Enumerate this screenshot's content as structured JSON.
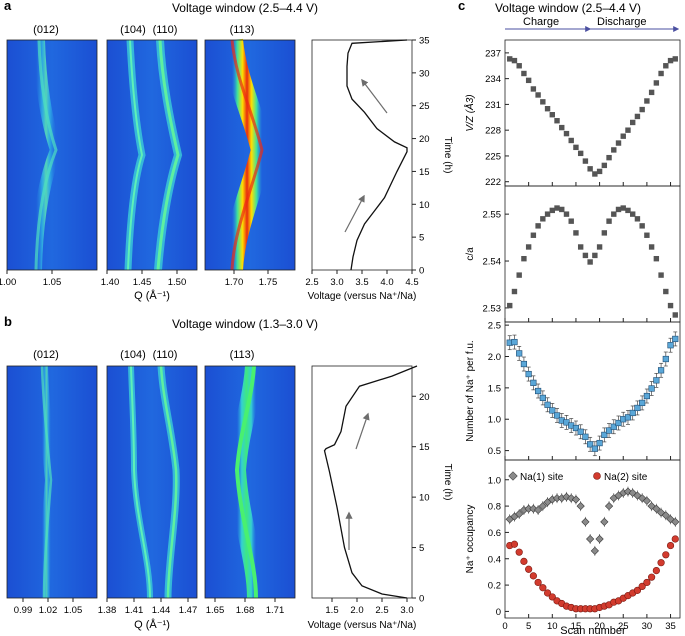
{
  "colors": {
    "heat_low": "#1a4fd6",
    "heat_mid": "#2aa6e8",
    "heat_peak": "#3ee89a",
    "heat_hot": "#ffe000",
    "heat_max": "#e01010",
    "marker_dark": "#555555",
    "marker_blue": "#5aa7d8",
    "marker_grey": "#8a8a8a",
    "marker_red": "#d23b2e",
    "arrow": "#6d6d6d",
    "axis": "#222222"
  },
  "panel_a": {
    "letter": "a",
    "title": "Voltage window (2.5–4.4 V)",
    "peaks": [
      "(012)",
      "(104)",
      "(110)",
      "(113)"
    ],
    "q_label": "Q (Å⁻¹)",
    "map1": {
      "q_range": [
        1.0,
        1.1
      ],
      "ticks": [
        "1.00",
        "1.05"
      ]
    },
    "map2": {
      "q_range": [
        1.4,
        1.53
      ],
      "ticks": [
        "1.40",
        "1.45",
        "1.50"
      ]
    },
    "map3": {
      "q_range": [
        1.65,
        1.78
      ],
      "ticks": [
        "1.70",
        "1.75"
      ]
    },
    "voltage_label": "Voltage (versus Na⁺/Na)",
    "voltage_ticks": [
      "2.5",
      "3.0",
      "3.5",
      "4.0",
      "4.5"
    ],
    "time_label": "Time (h)",
    "time_ticks": [
      "0",
      "5",
      "10",
      "15",
      "20",
      "25",
      "30",
      "35"
    ]
  },
  "panel_b": {
    "letter": "b",
    "title": "Voltage window (1.3–3.0 V)",
    "peaks": [
      "(012)",
      "(104)",
      "(110)",
      "(113)"
    ],
    "q_label": "Q (Å⁻¹)",
    "map1": {
      "q_range": [
        0.96,
        1.07
      ],
      "ticks": [
        "0.99",
        "1.02",
        "1.05"
      ]
    },
    "map2": {
      "q_range": [
        1.38,
        1.48
      ],
      "ticks": [
        "1.38",
        "1.41",
        "1.44",
        "1.47"
      ]
    },
    "map3": {
      "q_range": [
        1.64,
        1.73
      ],
      "ticks": [
        "1.65",
        "1.68",
        "1.71"
      ]
    },
    "voltage_label": "Voltage (versus Na⁺/Na)",
    "voltage_ticks": [
      "1.5",
      "2.0",
      "2.5",
      "3.0"
    ],
    "time_label": "Time (h)",
    "time_ticks": [
      "0",
      "5",
      "10",
      "15",
      "20"
    ]
  },
  "panel_c": {
    "letter": "c",
    "title": "Voltage window (2.5–4.4 V)",
    "charge_label": "Charge",
    "discharge_label": "Discharge",
    "x_label": "Scan number",
    "x_ticks": [
      "0",
      "5",
      "10",
      "15",
      "20",
      "25",
      "30",
      "35"
    ],
    "legend_na1": "Na(1) site",
    "legend_na2": "Na(2) site"
  },
  "chart_data": [
    {
      "type": "line",
      "title": "Voltage window (2.5–4.4 V)",
      "xlabel": "Voltage (versus Na⁺/Na)",
      "ylabel": "Time (h)",
      "xlim": [
        2.5,
        4.5
      ],
      "ylim": [
        0,
        35
      ],
      "x": [
        3.28,
        3.32,
        3.4,
        3.55,
        3.75,
        3.95,
        4.2,
        4.4,
        4.4,
        4.15,
        3.8,
        3.55,
        3.3,
        3.2,
        3.2,
        3.22,
        3.3,
        4.4
      ],
      "y": [
        0,
        2,
        4.5,
        7,
        9,
        11,
        15,
        18,
        18.6,
        19.5,
        21.5,
        24,
        26,
        28,
        31,
        33,
        34.5,
        35
      ]
    },
    {
      "type": "line",
      "title": "Voltage window (1.3–3.0 V)",
      "xlabel": "Voltage (versus Na⁺/Na)",
      "ylabel": "Time (h)",
      "xlim": [
        1.1,
        3.1
      ],
      "ylim": [
        0,
        23
      ],
      "x": [
        3.0,
        2.5,
        2.1,
        1.9,
        1.75,
        1.6,
        1.45,
        1.35,
        1.38,
        1.55,
        1.68,
        1.78,
        2.05,
        2.7,
        3.2
      ],
      "y": [
        0,
        0.4,
        1.2,
        2.5,
        5,
        9,
        12.5,
        14.6,
        14.8,
        15.2,
        16.5,
        19,
        21,
        22,
        23
      ]
    },
    {
      "type": "scatter",
      "title": "",
      "xlabel": "Scan number",
      "ylabel": "V/Z (Å3)",
      "xlim": [
        0,
        37
      ],
      "ylim": [
        221.5,
        238.5
      ],
      "yticks": [
        "222",
        "225",
        "228",
        "231",
        "234",
        "237"
      ],
      "x": [
        1,
        2,
        3,
        4,
        5,
        6,
        7,
        8,
        9,
        10,
        11,
        12,
        13,
        14,
        15,
        16,
        17,
        18,
        19,
        20,
        21,
        22,
        23,
        24,
        25,
        26,
        27,
        28,
        29,
        30,
        31,
        32,
        33,
        34,
        35,
        36
      ],
      "series": [
        {
          "name": "V/Z",
          "values": [
            236.3,
            236.1,
            235.5,
            234.6,
            233.8,
            232.8,
            232.1,
            231.3,
            230.5,
            229.8,
            229.1,
            228.3,
            227.6,
            226.8,
            226.0,
            225.3,
            224.4,
            223.5,
            222.9,
            223.2,
            223.9,
            224.8,
            225.7,
            226.5,
            227.3,
            228.0,
            228.9,
            229.6,
            230.4,
            231.4,
            232.4,
            233.5,
            234.6,
            235.5,
            236.1,
            236.3
          ]
        }
      ]
    },
    {
      "type": "scatter",
      "title": "",
      "xlabel": "Scan number",
      "ylabel": "c/a",
      "xlim": [
        0,
        37
      ],
      "ylim": [
        2.527,
        2.556
      ],
      "yticks": [
        "2.53",
        "2.54",
        "2.55"
      ],
      "x": [
        1,
        2,
        3,
        4,
        5,
        6,
        7,
        8,
        9,
        10,
        11,
        12,
        13,
        14,
        15,
        16,
        17,
        18,
        19,
        20,
        21,
        22,
        23,
        24,
        25,
        26,
        27,
        28,
        29,
        30,
        31,
        32,
        33,
        34,
        35,
        36
      ],
      "series": [
        {
          "name": "c/a",
          "values": [
            2.5305,
            2.5335,
            2.537,
            2.5405,
            2.543,
            2.5455,
            2.5475,
            2.549,
            2.55,
            2.5508,
            2.5513,
            2.551,
            2.55,
            2.5485,
            2.546,
            2.543,
            2.5412,
            2.5398,
            2.5412,
            2.543,
            2.546,
            2.5485,
            2.55,
            2.551,
            2.5513,
            2.5508,
            2.55,
            2.549,
            2.5475,
            2.5455,
            2.543,
            2.5405,
            2.537,
            2.5335,
            2.5305,
            2.5285
          ]
        }
      ]
    },
    {
      "type": "scatter",
      "title": "",
      "xlabel": "Scan number",
      "ylabel": "Number of Na⁺ per f.u.",
      "xlim": [
        0,
        37
      ],
      "ylim": [
        0.35,
        2.55
      ],
      "yticks": [
        "0.5",
        "1.0",
        "1.5",
        "2.0",
        "2.5"
      ],
      "x": [
        1,
        2,
        3,
        4,
        5,
        6,
        7,
        8,
        9,
        10,
        11,
        12,
        13,
        14,
        15,
        16,
        17,
        18,
        19,
        20,
        21,
        22,
        23,
        24,
        25,
        26,
        27,
        28,
        29,
        30,
        31,
        32,
        33,
        34,
        35,
        36
      ],
      "series": [
        {
          "name": "Na per f.u.",
          "values": [
            2.22,
            2.23,
            2.05,
            1.88,
            1.72,
            1.58,
            1.45,
            1.34,
            1.23,
            1.14,
            1.06,
            0.98,
            0.95,
            0.9,
            0.86,
            0.8,
            0.72,
            0.6,
            0.53,
            0.62,
            0.75,
            0.82,
            0.88,
            0.94,
            1.0,
            1.03,
            1.1,
            1.18,
            1.26,
            1.37,
            1.49,
            1.62,
            1.78,
            1.96,
            2.18,
            2.28
          ]
        }
      ]
    },
    {
      "type": "scatter",
      "title": "",
      "xlabel": "Scan number",
      "ylabel": "Na⁺ occupancy",
      "xlim": [
        0,
        37
      ],
      "ylim": [
        -0.05,
        1.15
      ],
      "yticks": [
        "0",
        "0.2",
        "0.4",
        "0.6",
        "0.8",
        "1.0"
      ],
      "x": [
        1,
        2,
        3,
        4,
        5,
        6,
        7,
        8,
        9,
        10,
        11,
        12,
        13,
        14,
        15,
        16,
        17,
        18,
        19,
        20,
        21,
        22,
        23,
        24,
        25,
        26,
        27,
        28,
        29,
        30,
        31,
        32,
        33,
        34,
        35,
        36
      ],
      "series": [
        {
          "name": "Na(1) site",
          "values": [
            0.7,
            0.72,
            0.74,
            0.77,
            0.78,
            0.78,
            0.77,
            0.8,
            0.83,
            0.85,
            0.86,
            0.86,
            0.87,
            0.86,
            0.85,
            0.8,
            0.68,
            0.55,
            0.46,
            0.55,
            0.68,
            0.8,
            0.86,
            0.88,
            0.9,
            0.91,
            0.9,
            0.88,
            0.86,
            0.84,
            0.8,
            0.78,
            0.75,
            0.73,
            0.7,
            0.68
          ]
        },
        {
          "name": "Na(2) site",
          "values": [
            0.5,
            0.51,
            0.45,
            0.38,
            0.32,
            0.27,
            0.22,
            0.18,
            0.14,
            0.11,
            0.08,
            0.06,
            0.04,
            0.03,
            0.02,
            0.02,
            0.02,
            0.02,
            0.02,
            0.03,
            0.04,
            0.05,
            0.07,
            0.08,
            0.1,
            0.12,
            0.14,
            0.16,
            0.19,
            0.22,
            0.26,
            0.31,
            0.37,
            0.43,
            0.5,
            0.55
          ]
        }
      ]
    }
  ]
}
